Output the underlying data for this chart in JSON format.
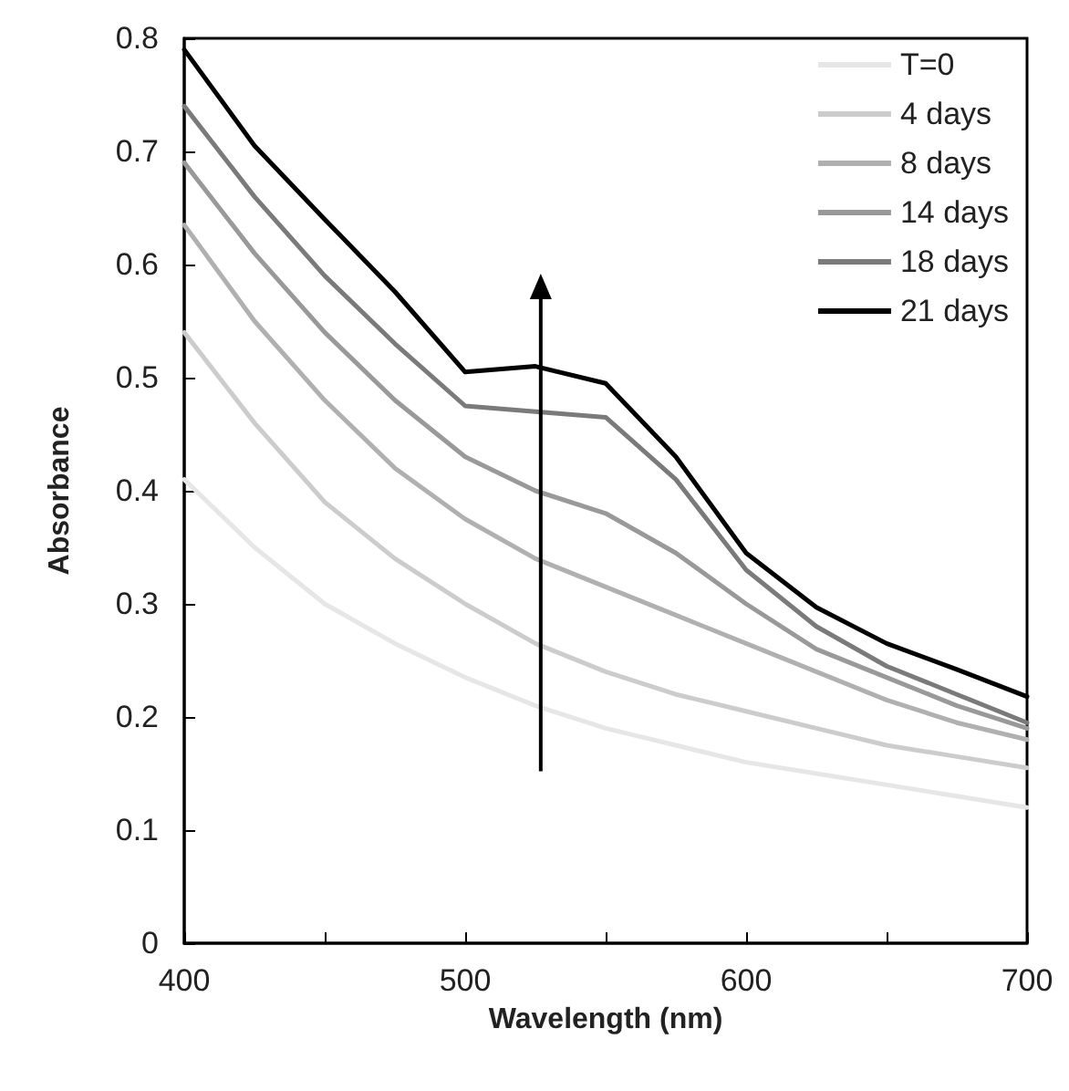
{
  "chart_data": {
    "type": "line",
    "xlabel": "Wavelength (nm)",
    "ylabel": "Absorbance",
    "x": [
      400,
      425,
      450,
      475,
      500,
      525,
      550,
      575,
      600,
      625,
      650,
      675,
      700
    ],
    "series": [
      {
        "name": "T=0",
        "color": "#e6e6e6",
        "values": [
          0.41,
          0.35,
          0.3,
          0.265,
          0.235,
          0.21,
          0.19,
          0.175,
          0.16,
          0.15,
          0.14,
          0.13,
          0.12
        ]
      },
      {
        "name": "4 days",
        "color": "#cccccc",
        "values": [
          0.54,
          0.46,
          0.39,
          0.34,
          0.3,
          0.265,
          0.24,
          0.22,
          0.205,
          0.19,
          0.175,
          0.165,
          0.155
        ]
      },
      {
        "name": "8 days",
        "color": "#b0b0b0",
        "values": [
          0.635,
          0.55,
          0.48,
          0.42,
          0.375,
          0.34,
          0.315,
          0.29,
          0.265,
          0.24,
          0.215,
          0.195,
          0.18
        ]
      },
      {
        "name": "14 days",
        "color": "#999999",
        "values": [
          0.69,
          0.61,
          0.54,
          0.48,
          0.43,
          0.4,
          0.38,
          0.345,
          0.3,
          0.26,
          0.235,
          0.21,
          0.19
        ]
      },
      {
        "name": "18 days",
        "color": "#7a7a7a",
        "values": [
          0.74,
          0.66,
          0.59,
          0.53,
          0.475,
          0.47,
          0.465,
          0.41,
          0.33,
          0.28,
          0.245,
          0.22,
          0.195
        ]
      },
      {
        "name": "21 days",
        "color": "#000000",
        "values": [
          0.79,
          0.705,
          0.64,
          0.576,
          0.505,
          0.51,
          0.495,
          0.43,
          0.345,
          0.297,
          0.265,
          0.242,
          0.218
        ]
      }
    ],
    "xlim": [
      400,
      700
    ],
    "xticks": [
      400,
      {
        "value": 450,
        "label": null
      },
      500,
      {
        "value": 550,
        "label": null
      },
      600,
      {
        "value": 650,
        "label": null
      },
      700
    ],
    "ylim": [
      0,
      0.8
    ],
    "yticks": [
      0,
      0.1,
      0.2,
      0.3,
      0.4,
      0.5,
      0.6,
      0.7,
      0.8
    ],
    "grid": false,
    "legend": "top right",
    "marker": "none",
    "line_style": "solid"
  }
}
